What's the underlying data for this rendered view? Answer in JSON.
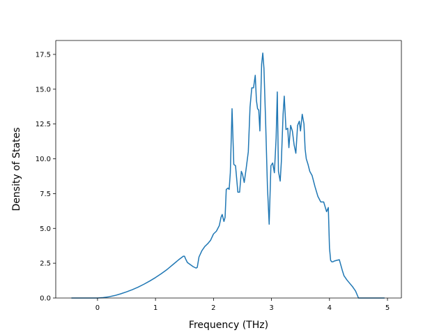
{
  "chart_data": {
    "type": "line",
    "title": "",
    "xlabel": "Frequency (THz)",
    "ylabel": "Density of States",
    "xlim": [
      -0.72,
      5.24
    ],
    "ylim": [
      0,
      18.5
    ],
    "xticks": [
      0,
      1,
      2,
      3,
      4,
      5
    ],
    "yticks": [
      0.0,
      2.5,
      5.0,
      7.5,
      10.0,
      12.5,
      15.0,
      17.5
    ],
    "xtick_labels": [
      "0",
      "1",
      "2",
      "3",
      "4",
      "5"
    ],
    "ytick_labels": [
      "0.0",
      "2.5",
      "5.0",
      "7.5",
      "10.0",
      "12.5",
      "15.0",
      "17.5"
    ],
    "grid": false,
    "legend": "none",
    "colors": {
      "line": "#1f77b4",
      "axes": "#000000",
      "background": "#ffffff"
    },
    "series": [
      {
        "x": [
          -0.45,
          -0.2,
          0.0,
          0.1,
          0.2,
          0.3,
          0.4,
          0.5,
          0.6,
          0.7,
          0.8,
          0.9,
          1.0,
          1.1,
          1.2,
          1.3,
          1.4,
          1.48,
          1.5,
          1.52,
          1.55,
          1.6,
          1.65,
          1.7,
          1.72,
          1.75,
          1.8,
          1.85,
          1.9,
          1.95,
          2.0,
          2.05,
          2.1,
          2.13,
          2.15,
          2.18,
          2.2,
          2.22,
          2.25,
          2.27,
          2.29,
          2.32,
          2.35,
          2.38,
          2.42,
          2.45,
          2.48,
          2.5,
          2.53,
          2.56,
          2.6,
          2.63,
          2.66,
          2.69,
          2.72,
          2.74,
          2.76,
          2.78,
          2.8,
          2.83,
          2.85,
          2.87,
          2.9,
          2.93,
          2.96,
          2.99,
          3.02,
          3.05,
          3.08,
          3.1,
          3.12,
          3.15,
          3.17,
          3.2,
          3.22,
          3.25,
          3.28,
          3.3,
          3.33,
          3.36,
          3.39,
          3.42,
          3.45,
          3.48,
          3.5,
          3.53,
          3.56,
          3.58,
          3.6,
          3.63,
          3.66,
          3.7,
          3.75,
          3.8,
          3.85,
          3.9,
          3.95,
          3.98,
          4.0,
          4.02,
          4.04,
          4.06,
          4.08,
          4.12,
          4.17,
          4.22,
          4.25,
          4.3,
          4.35,
          4.4,
          4.45,
          4.48,
          4.5,
          4.52,
          4.6,
          4.8,
          4.95
        ],
        "y": [
          0.0,
          0.0,
          0.0,
          0.03,
          0.09,
          0.18,
          0.3,
          0.44,
          0.6,
          0.78,
          0.99,
          1.22,
          1.47,
          1.75,
          2.05,
          2.4,
          2.75,
          3.0,
          3.0,
          2.8,
          2.55,
          2.4,
          2.25,
          2.15,
          2.2,
          2.95,
          3.4,
          3.7,
          3.9,
          4.15,
          4.6,
          4.8,
          5.2,
          5.8,
          6.0,
          5.5,
          5.8,
          7.8,
          7.9,
          7.8,
          9.0,
          13.6,
          9.6,
          9.5,
          7.6,
          7.6,
          9.1,
          8.9,
          8.3,
          9.2,
          10.5,
          13.7,
          15.1,
          15.1,
          16.0,
          14.2,
          13.6,
          13.5,
          12.0,
          16.8,
          17.6,
          16.5,
          12.5,
          8.0,
          5.3,
          9.5,
          9.7,
          9.0,
          11.5,
          14.8,
          9.1,
          8.4,
          9.8,
          13.2,
          14.5,
          12.1,
          12.2,
          10.8,
          12.4,
          12.0,
          11.0,
          10.4,
          12.4,
          12.7,
          12.0,
          13.2,
          12.5,
          10.7,
          10.0,
          9.6,
          9.1,
          8.8,
          8.0,
          7.3,
          6.9,
          6.9,
          6.2,
          6.5,
          3.6,
          2.7,
          2.6,
          2.6,
          2.65,
          2.7,
          2.75,
          2.0,
          1.6,
          1.3,
          1.05,
          0.8,
          0.5,
          0.2,
          0.0,
          0.0,
          0.0,
          0.0,
          0.0
        ]
      }
    ]
  }
}
